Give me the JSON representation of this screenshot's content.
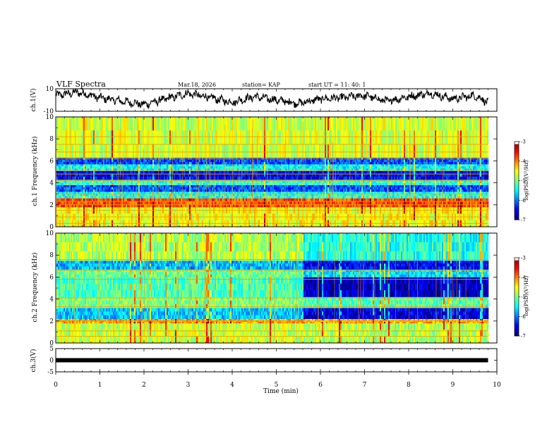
{
  "header": {
    "title": "VLF Spectra",
    "date": "Mar.18, 2026",
    "station": "station= KAP",
    "start": "start  UT =   11: 40: 1"
  },
  "chart_data": [
    {
      "type": "line",
      "name": "ch1-waveform",
      "ylabel": "ch.1(V)",
      "ylim": [
        -10,
        10
      ],
      "yticks": [
        {
          "label": "10",
          "value": 10
        },
        {
          "label": "-10",
          "value": -10
        }
      ],
      "x": [
        0,
        0.5,
        1,
        1.5,
        2,
        2.5,
        3,
        3.5,
        4,
        4.5,
        5,
        5.5,
        6,
        6.5,
        7,
        7.5,
        8,
        8.5,
        9,
        9.5,
        9.8
      ],
      "y": [
        4,
        7,
        2,
        -1,
        -4,
        1,
        6,
        2,
        -2,
        3,
        0,
        -3,
        1,
        2,
        4,
        -1,
        3,
        6,
        1,
        4,
        -2
      ]
    },
    {
      "type": "heatmap",
      "name": "ch1-spectrogram",
      "ylabel": "ch.1 Frequency (kHz)",
      "xlim": [
        0,
        10
      ],
      "ylim": [
        0,
        10
      ],
      "data_xmax": 9.8,
      "yticks": [
        "0",
        "2",
        "4",
        "6",
        "8",
        "10"
      ],
      "bands": [
        {
          "f0": 0,
          "f1": 1.8,
          "level": 0.62
        },
        {
          "f0": 1.8,
          "f1": 2.6,
          "level": 0.8
        },
        {
          "f0": 2.6,
          "f1": 3.2,
          "level": 0.4
        },
        {
          "f0": 3.2,
          "f1": 3.8,
          "level": 0.2
        },
        {
          "f0": 3.8,
          "f1": 4.3,
          "level": 0.42
        },
        {
          "f0": 4.3,
          "f1": 5.1,
          "level": 0.12
        },
        {
          "f0": 5.1,
          "f1": 5.7,
          "level": 0.38
        },
        {
          "f0": 5.7,
          "f1": 6.3,
          "level": 0.2
        },
        {
          "f0": 6.3,
          "f1": 10,
          "level": 0.58
        }
      ],
      "lines": [
        0.3,
        0.9,
        1.5,
        2.0,
        2.3,
        3.0,
        4.2,
        4.8,
        5.1,
        6.2,
        6.8,
        7.5,
        8.2
      ]
    },
    {
      "type": "heatmap",
      "name": "ch2-spectrogram",
      "ylabel": "ch.2 Frequency (kHz)",
      "xlim": [
        0,
        10
      ],
      "ylim": [
        0,
        10
      ],
      "data_xmax": 9.8,
      "yticks": [
        "0",
        "2",
        "4",
        "6",
        "8",
        "10"
      ],
      "change_x": 5.6,
      "bands": [
        {
          "f0": 0,
          "f1": 1.8,
          "level": 0.58,
          "level_after": 0.55
        },
        {
          "f0": 1.8,
          "f1": 2.2,
          "level": 0.72,
          "level_after": 0.7
        },
        {
          "f0": 2.2,
          "f1": 3.2,
          "level": 0.32,
          "level_after": 0.1
        },
        {
          "f0": 3.2,
          "f1": 4.2,
          "level": 0.5,
          "level_after": 0.45
        },
        {
          "f0": 4.2,
          "f1": 6.0,
          "level": 0.45,
          "level_after": 0.06
        },
        {
          "f0": 6.0,
          "f1": 6.7,
          "level": 0.48,
          "level_after": 0.35
        },
        {
          "f0": 6.7,
          "f1": 7.5,
          "level": 0.3,
          "level_after": 0.12
        },
        {
          "f0": 7.5,
          "f1": 10,
          "level": 0.55,
          "level_after": 0.4
        }
      ],
      "lines": [
        0.6,
        1.1,
        2.0,
        3.3,
        4.1,
        5.8,
        6.6,
        7.6
      ]
    },
    {
      "type": "line",
      "name": "ch3-waveform",
      "ylabel": "ch.3(V)",
      "ylim": [
        -5,
        5
      ],
      "yticks": [
        {
          "label": "5",
          "value": 5
        },
        {
          "label": "0",
          "value": 0
        },
        {
          "label": "-5",
          "value": -5
        }
      ],
      "x": [
        0,
        9.8
      ],
      "y": [
        0,
        0
      ]
    }
  ],
  "xaxis": {
    "label": "Time  (min)",
    "ticks": [
      "0",
      "1",
      "2",
      "3",
      "4",
      "5",
      "6",
      "7",
      "8",
      "9",
      "10"
    ]
  },
  "colorbars": [
    {
      "label": "log(PSD)(V²/Hz)",
      "ticks": [
        "-3",
        "-4",
        "-5",
        "-6",
        "-7"
      ],
      "range": [
        -7,
        -3
      ]
    },
    {
      "label": "log(PSD)(V²/Hz)",
      "ticks": [
        "-3",
        "-4",
        "-5",
        "-6",
        "-7"
      ],
      "range": [
        -7,
        -3
      ]
    }
  ]
}
